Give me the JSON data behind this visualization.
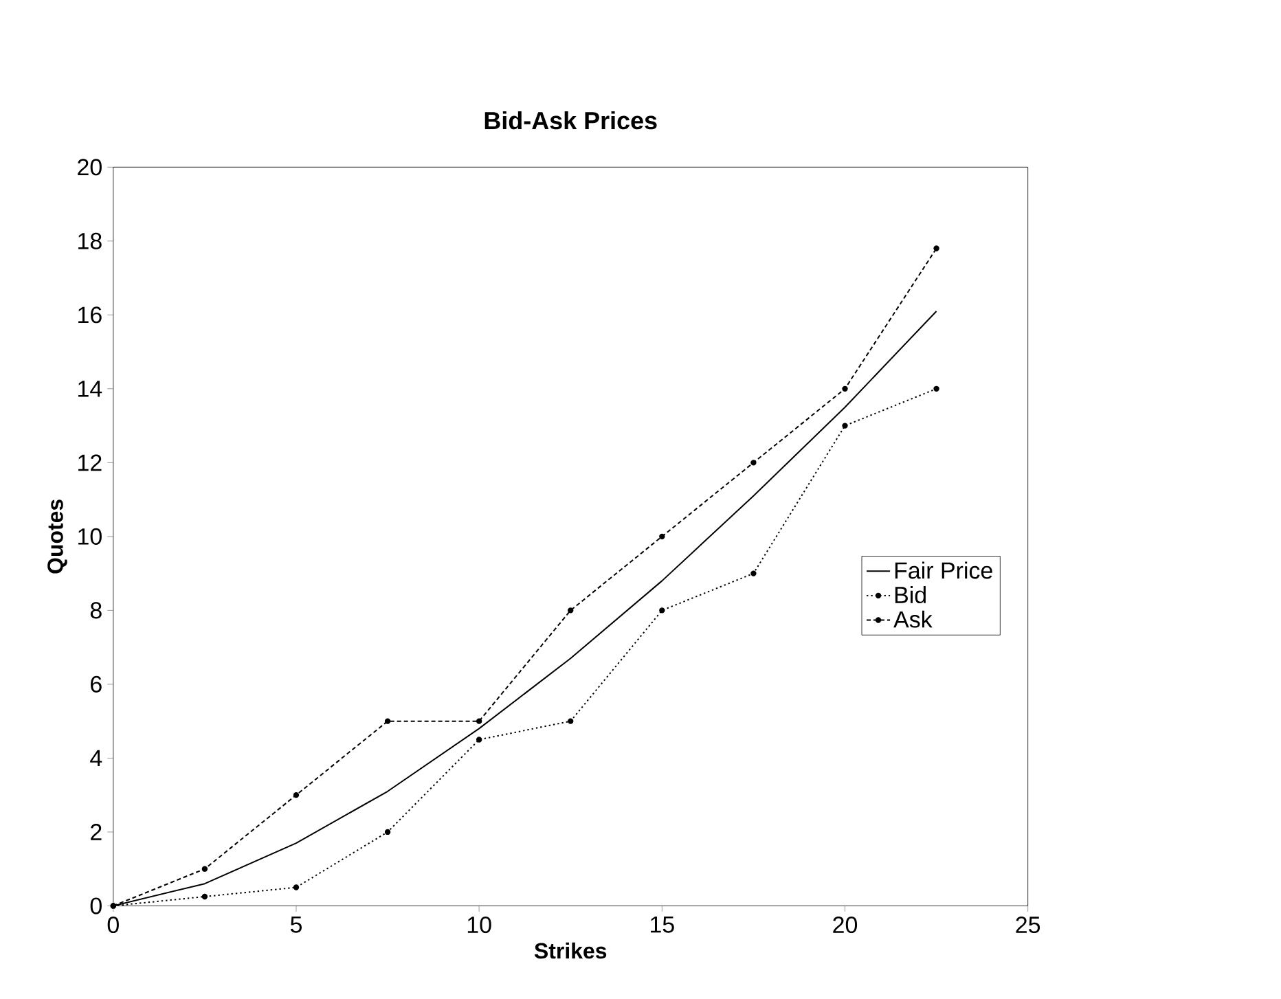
{
  "chart_data": {
    "type": "line",
    "title": "Bid-Ask Prices",
    "xlabel": "Strikes",
    "ylabel": "Quotes",
    "x": [
      0,
      2.5,
      5,
      7.5,
      10,
      12.5,
      15,
      17.5,
      20,
      22.5
    ],
    "series": [
      {
        "name": "Fair Price",
        "color": "#000000",
        "line_style": "solid",
        "marker": "none",
        "values": [
          0,
          0.6,
          1.7,
          3.1,
          4.8,
          6.7,
          8.8,
          11.1,
          13.5,
          16.1
        ]
      },
      {
        "name": "Bid",
        "color": "#000000",
        "line_style": "dotted",
        "marker": "circle",
        "values": [
          0,
          0.25,
          0.5,
          2,
          4.5,
          5,
          8,
          9,
          13,
          14
        ]
      },
      {
        "name": "Ask",
        "color": "#000000",
        "line_style": "dashed",
        "marker": "circle",
        "values": [
          0,
          1,
          3,
          5,
          5,
          8,
          10,
          12,
          14,
          17.8
        ]
      }
    ],
    "xlim": [
      0,
      25
    ],
    "xticks": [
      0,
      5,
      10,
      15,
      20,
      25
    ],
    "ylim": [
      0,
      20
    ],
    "yticks": [
      0,
      2,
      4,
      6,
      8,
      10,
      12,
      14,
      16,
      18,
      20
    ],
    "grid": false,
    "legend": "right"
  }
}
